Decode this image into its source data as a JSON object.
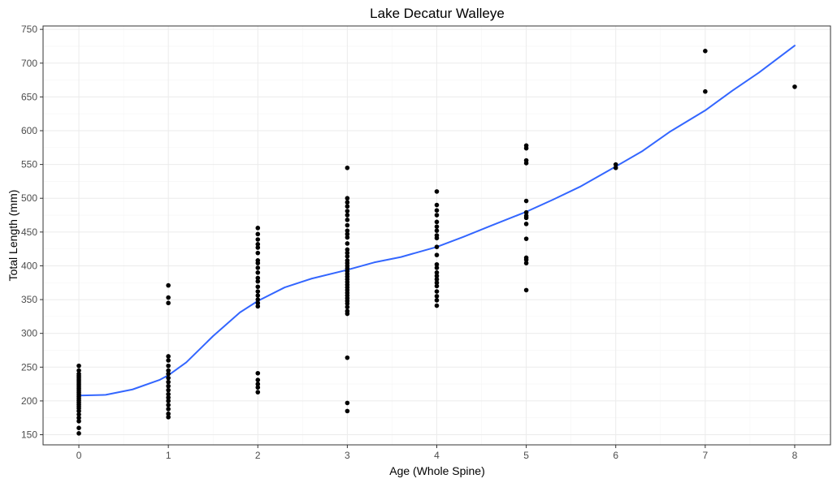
{
  "chart_data": {
    "type": "scatter",
    "title": "Lake Decatur Walleye",
    "xlabel": "Age (Whole Spine)",
    "ylabel": "Total Length (mm)",
    "xlim": [
      -0.4,
      8.4
    ],
    "ylim": [
      135,
      755
    ],
    "x_ticks": [
      0,
      1,
      2,
      3,
      4,
      5,
      6,
      7,
      8
    ],
    "y_ticks": [
      150,
      200,
      250,
      300,
      350,
      400,
      450,
      500,
      550,
      600,
      650,
      700,
      750
    ],
    "grid": true,
    "colors": {
      "points": "#000000",
      "trend": "#3366FF",
      "panel_border": "#333333",
      "grid_major": "#ebebeb",
      "grid_minor": "#f5f5f5",
      "tick_label": "#4d4d4d"
    },
    "points": [
      {
        "x": 0,
        "y": 252
      },
      {
        "x": 0,
        "y": 245
      },
      {
        "x": 0,
        "y": 240
      },
      {
        "x": 0,
        "y": 237
      },
      {
        "x": 0,
        "y": 234
      },
      {
        "x": 0,
        "y": 231
      },
      {
        "x": 0,
        "y": 228
      },
      {
        "x": 0,
        "y": 225
      },
      {
        "x": 0,
        "y": 222
      },
      {
        "x": 0,
        "y": 219
      },
      {
        "x": 0,
        "y": 216
      },
      {
        "x": 0,
        "y": 213
      },
      {
        "x": 0,
        "y": 210
      },
      {
        "x": 0,
        "y": 207
      },
      {
        "x": 0,
        "y": 204
      },
      {
        "x": 0,
        "y": 201
      },
      {
        "x": 0,
        "y": 198
      },
      {
        "x": 0,
        "y": 195
      },
      {
        "x": 0,
        "y": 192
      },
      {
        "x": 0,
        "y": 189
      },
      {
        "x": 0,
        "y": 185
      },
      {
        "x": 0,
        "y": 180
      },
      {
        "x": 0,
        "y": 175
      },
      {
        "x": 0,
        "y": 170
      },
      {
        "x": 0,
        "y": 160
      },
      {
        "x": 0,
        "y": 152
      },
      {
        "x": 1,
        "y": 371
      },
      {
        "x": 1,
        "y": 353
      },
      {
        "x": 1,
        "y": 345
      },
      {
        "x": 1,
        "y": 266
      },
      {
        "x": 1,
        "y": 260
      },
      {
        "x": 1,
        "y": 252
      },
      {
        "x": 1,
        "y": 245
      },
      {
        "x": 1,
        "y": 240
      },
      {
        "x": 1,
        "y": 234
      },
      {
        "x": 1,
        "y": 228
      },
      {
        "x": 1,
        "y": 222
      },
      {
        "x": 1,
        "y": 216
      },
      {
        "x": 1,
        "y": 210
      },
      {
        "x": 1,
        "y": 205
      },
      {
        "x": 1,
        "y": 200
      },
      {
        "x": 1,
        "y": 194
      },
      {
        "x": 1,
        "y": 188
      },
      {
        "x": 1,
        "y": 181
      },
      {
        "x": 1,
        "y": 176
      },
      {
        "x": 2,
        "y": 456
      },
      {
        "x": 2,
        "y": 447
      },
      {
        "x": 2,
        "y": 439
      },
      {
        "x": 2,
        "y": 432
      },
      {
        "x": 2,
        "y": 427
      },
      {
        "x": 2,
        "y": 419
      },
      {
        "x": 2,
        "y": 408
      },
      {
        "x": 2,
        "y": 404
      },
      {
        "x": 2,
        "y": 397
      },
      {
        "x": 2,
        "y": 390
      },
      {
        "x": 2,
        "y": 382
      },
      {
        "x": 2,
        "y": 377
      },
      {
        "x": 2,
        "y": 369
      },
      {
        "x": 2,
        "y": 362
      },
      {
        "x": 2,
        "y": 356
      },
      {
        "x": 2,
        "y": 350
      },
      {
        "x": 2,
        "y": 345
      },
      {
        "x": 2,
        "y": 340
      },
      {
        "x": 2,
        "y": 241
      },
      {
        "x": 2,
        "y": 231
      },
      {
        "x": 2,
        "y": 225
      },
      {
        "x": 2,
        "y": 220
      },
      {
        "x": 2,
        "y": 213
      },
      {
        "x": 3,
        "y": 545
      },
      {
        "x": 3,
        "y": 500
      },
      {
        "x": 3,
        "y": 494
      },
      {
        "x": 3,
        "y": 488
      },
      {
        "x": 3,
        "y": 481
      },
      {
        "x": 3,
        "y": 475
      },
      {
        "x": 3,
        "y": 468
      },
      {
        "x": 3,
        "y": 460
      },
      {
        "x": 3,
        "y": 452
      },
      {
        "x": 3,
        "y": 447
      },
      {
        "x": 3,
        "y": 442
      },
      {
        "x": 3,
        "y": 433
      },
      {
        "x": 3,
        "y": 424
      },
      {
        "x": 3,
        "y": 419
      },
      {
        "x": 3,
        "y": 414
      },
      {
        "x": 3,
        "y": 408
      },
      {
        "x": 3,
        "y": 404
      },
      {
        "x": 3,
        "y": 400
      },
      {
        "x": 3,
        "y": 396
      },
      {
        "x": 3,
        "y": 392
      },
      {
        "x": 3,
        "y": 388
      },
      {
        "x": 3,
        "y": 384
      },
      {
        "x": 3,
        "y": 380
      },
      {
        "x": 3,
        "y": 376
      },
      {
        "x": 3,
        "y": 372
      },
      {
        "x": 3,
        "y": 368
      },
      {
        "x": 3,
        "y": 364
      },
      {
        "x": 3,
        "y": 360
      },
      {
        "x": 3,
        "y": 356
      },
      {
        "x": 3,
        "y": 352
      },
      {
        "x": 3,
        "y": 348
      },
      {
        "x": 3,
        "y": 344
      },
      {
        "x": 3,
        "y": 339
      },
      {
        "x": 3,
        "y": 333
      },
      {
        "x": 3,
        "y": 329
      },
      {
        "x": 3,
        "y": 264
      },
      {
        "x": 3,
        "y": 197
      },
      {
        "x": 3,
        "y": 185
      },
      {
        "x": 4,
        "y": 510
      },
      {
        "x": 4,
        "y": 490
      },
      {
        "x": 4,
        "y": 482
      },
      {
        "x": 4,
        "y": 475
      },
      {
        "x": 4,
        "y": 465
      },
      {
        "x": 4,
        "y": 458
      },
      {
        "x": 4,
        "y": 452
      },
      {
        "x": 4,
        "y": 445
      },
      {
        "x": 4,
        "y": 441
      },
      {
        "x": 4,
        "y": 428
      },
      {
        "x": 4,
        "y": 416
      },
      {
        "x": 4,
        "y": 402
      },
      {
        "x": 4,
        "y": 397
      },
      {
        "x": 4,
        "y": 390
      },
      {
        "x": 4,
        "y": 385
      },
      {
        "x": 4,
        "y": 380
      },
      {
        "x": 4,
        "y": 375
      },
      {
        "x": 4,
        "y": 370
      },
      {
        "x": 4,
        "y": 362
      },
      {
        "x": 4,
        "y": 355
      },
      {
        "x": 4,
        "y": 349
      },
      {
        "x": 4,
        "y": 341
      },
      {
        "x": 5,
        "y": 578
      },
      {
        "x": 5,
        "y": 574
      },
      {
        "x": 5,
        "y": 556
      },
      {
        "x": 5,
        "y": 552
      },
      {
        "x": 5,
        "y": 496
      },
      {
        "x": 5,
        "y": 479
      },
      {
        "x": 5,
        "y": 474
      },
      {
        "x": 5,
        "y": 471
      },
      {
        "x": 5,
        "y": 462
      },
      {
        "x": 5,
        "y": 440
      },
      {
        "x": 5,
        "y": 412
      },
      {
        "x": 5,
        "y": 409
      },
      {
        "x": 5,
        "y": 404
      },
      {
        "x": 5,
        "y": 364
      },
      {
        "x": 6,
        "y": 550
      },
      {
        "x": 6,
        "y": 545
      },
      {
        "x": 7,
        "y": 718
      },
      {
        "x": 7,
        "y": 658
      },
      {
        "x": 8,
        "y": 665
      }
    ],
    "trend_line": {
      "x": [
        0,
        0.3,
        0.6,
        0.9,
        1.0,
        1.2,
        1.5,
        1.8,
        2.0,
        2.3,
        2.6,
        3.0,
        3.3,
        3.6,
        4.0,
        4.3,
        4.6,
        5.0,
        5.3,
        5.6,
        6.0,
        6.3,
        6.6,
        7.0,
        7.3,
        7.6,
        8.0
      ],
      "y": [
        208,
        209,
        217,
        231,
        238,
        257,
        296,
        331,
        348,
        368,
        381,
        394,
        405,
        413,
        428,
        443,
        459,
        480,
        498,
        517,
        547,
        570,
        598,
        630,
        659,
        686,
        726
      ]
    }
  }
}
